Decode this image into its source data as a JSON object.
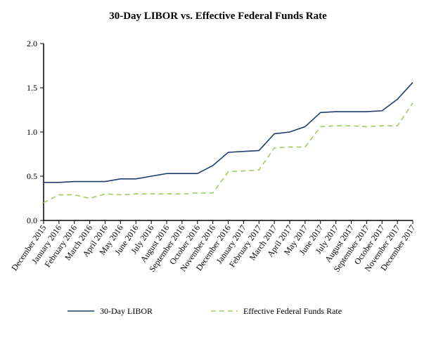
{
  "chart_data": {
    "type": "line",
    "title": "30-Day LIBOR vs. Effective Federal Funds Rate",
    "xlabel": "",
    "ylabel": "",
    "ylim": [
      0,
      2.0
    ],
    "yticks": [
      "0.0",
      "0.5",
      "1.0",
      "1.5",
      "2.0"
    ],
    "grid": false,
    "legend": "bottom",
    "categories": [
      "December 2015",
      "January 2016",
      "February 2016",
      "March 2016",
      "April 2016",
      "May 2016",
      "June 2016",
      "July 2016",
      "August 2016",
      "September 2016",
      "October 2016",
      "November 2016",
      "December 2016",
      "January 2017",
      "February 2017",
      "March 2017",
      "April 2017",
      "May 2017",
      "June 2017",
      "July 2017",
      "August 2017",
      "September 2017",
      "October 2017",
      "November 2017",
      "December 2017"
    ],
    "series": [
      {
        "name": "30-Day LIBOR",
        "color": "#1f3d6e",
        "style": "solid",
        "values": [
          0.43,
          0.43,
          0.44,
          0.44,
          0.44,
          0.47,
          0.47,
          0.5,
          0.53,
          0.53,
          0.53,
          0.62,
          0.77,
          0.78,
          0.79,
          0.98,
          1.0,
          1.06,
          1.22,
          1.23,
          1.23,
          1.23,
          1.24,
          1.37,
          1.56
        ]
      },
      {
        "name": "Effective Federal Funds Rate",
        "color": "#9bcf5a",
        "style": "dashed",
        "values": [
          0.2,
          0.29,
          0.29,
          0.25,
          0.3,
          0.29,
          0.3,
          0.3,
          0.3,
          0.3,
          0.31,
          0.31,
          0.55,
          0.56,
          0.57,
          0.82,
          0.83,
          0.83,
          1.06,
          1.07,
          1.07,
          1.06,
          1.07,
          1.07,
          1.33
        ]
      }
    ]
  }
}
